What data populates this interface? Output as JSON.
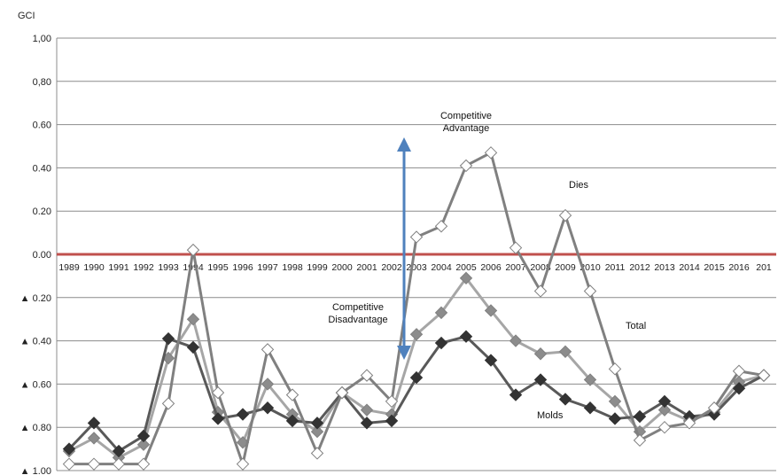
{
  "chart_data": {
    "type": "line",
    "ylabel": "GCI",
    "ylim": [
      -1.0,
      1.0
    ],
    "y_ticks": [
      "1,00",
      "0,80",
      "0.60",
      "0.40",
      "0.20",
      "0.00",
      "▲ 0.20",
      "▲ 0.40",
      "▲ 0.60",
      "▲ 0.80",
      "▲ 1.00"
    ],
    "y_tick_values": [
      1.0,
      0.8,
      0.6,
      0.4,
      0.2,
      0.0,
      -0.2,
      -0.4,
      -0.6,
      -0.8,
      -1.0
    ],
    "categories": [
      "1989",
      "1990",
      "1991",
      "1992",
      "1993",
      "1994",
      "1995",
      "1996",
      "1997",
      "1998",
      "1999",
      "2000",
      "2001",
      "2002",
      "2003",
      "2004",
      "2005",
      "2006",
      "2007",
      "2008",
      "2009",
      "2010",
      "2011",
      "2012",
      "2013",
      "2014",
      "2015",
      "2016",
      "201"
    ],
    "grid": true,
    "series": [
      {
        "name": "Dies",
        "color": "#808080",
        "marker": "diamond-white",
        "values": [
          -0.97,
          -0.97,
          -0.97,
          -0.97,
          -0.69,
          0.02,
          -0.64,
          -0.97,
          -0.44,
          -0.65,
          -0.92,
          -0.64,
          -0.56,
          -0.68,
          0.08,
          0.13,
          0.41,
          0.47,
          0.03,
          -0.17,
          0.18,
          -0.17,
          -0.53,
          -0.86,
          -0.8,
          -0.78,
          -0.71,
          -0.54,
          -0.56
        ]
      },
      {
        "name": "Total",
        "color": "#a6a6a6",
        "marker": "diamond-gray",
        "values": [
          -0.91,
          -0.85,
          -0.94,
          -0.88,
          -0.48,
          -0.3,
          -0.73,
          -0.87,
          -0.6,
          -0.74,
          -0.82,
          -0.64,
          -0.72,
          -0.74,
          -0.37,
          -0.27,
          -0.11,
          -0.26,
          -0.4,
          -0.46,
          -0.45,
          -0.58,
          -0.68,
          -0.82,
          -0.72,
          -0.77,
          -0.73,
          -0.59,
          -0.56
        ]
      },
      {
        "name": "Molds",
        "color": "#595959",
        "marker": "diamond-black",
        "values": [
          -0.9,
          -0.78,
          -0.91,
          -0.84,
          -0.39,
          -0.43,
          -0.76,
          -0.74,
          -0.71,
          -0.77,
          -0.78,
          -0.64,
          -0.78,
          -0.77,
          -0.57,
          -0.41,
          -0.38,
          -0.49,
          -0.65,
          -0.58,
          -0.67,
          -0.71,
          -0.76,
          -0.75,
          -0.68,
          -0.75,
          -0.74,
          -0.62,
          -0.56
        ]
      }
    ],
    "annotations": {
      "advantage": [
        "Competitive",
        "Advantage"
      ],
      "disadvantage": [
        "Competitive",
        "Disadvantage"
      ],
      "dies": "Dies",
      "total": "Total",
      "molds": "Molds"
    },
    "colors": {
      "zero_line": "#c0504d",
      "arrow": "#4f81bd",
      "grid": "#8c8c8c"
    }
  }
}
